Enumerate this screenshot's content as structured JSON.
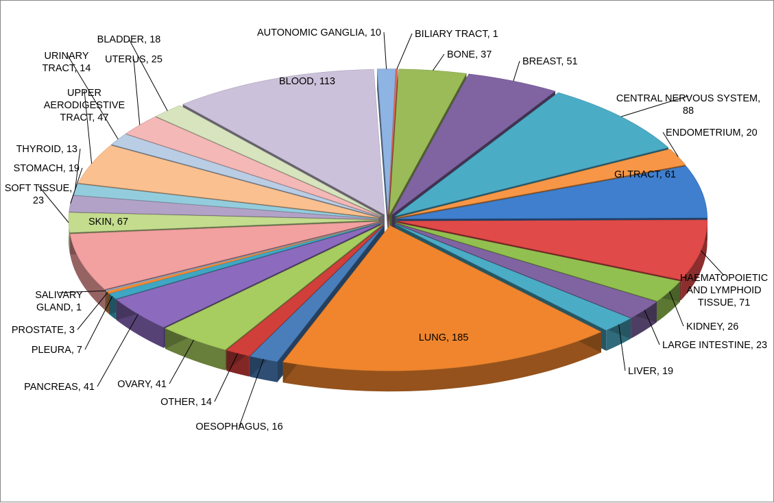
{
  "chart_data": {
    "type": "pie",
    "style": "3d-exploded",
    "slices": [
      {
        "label": "AUTONOMIC GANGLIA",
        "value": 10,
        "display": "AUTONOMIC GANGLIA, 10",
        "color": "#8EB4E3"
      },
      {
        "label": "BILIARY TRACT",
        "value": 1,
        "display": "BILIARY TRACT, 1",
        "color": "#E46C5A"
      },
      {
        "label": "BONE",
        "value": 37,
        "display": "BONE, 37",
        "color": "#9BBB59"
      },
      {
        "label": "BREAST",
        "value": 51,
        "display": "BREAST, 51",
        "color": "#8064A2"
      },
      {
        "label": "CENTRAL NERVOUS SYSTEM",
        "value": 88,
        "display": "CENTRAL NERVOUS SYSTEM, 88",
        "color": "#4BACC6"
      },
      {
        "label": "ENDOMETRIUM",
        "value": 20,
        "display": "ENDOMETRIUM, 20",
        "color": "#F79646"
      },
      {
        "label": "GI TRACT",
        "value": 61,
        "display": "GI TRACT, 61",
        "color": "#3F7FCE"
      },
      {
        "label": "HAEMATOPOIETIC AND LYMPHOID TISSUE",
        "value": 71,
        "display": "HAEMATOPOIETIC AND LYMPHOID TISSUE, 71",
        "color": "#E04A48"
      },
      {
        "label": "KIDNEY",
        "value": 26,
        "display": "KIDNEY, 26",
        "color": "#92C050"
      },
      {
        "label": "LARGE INTESTINE",
        "value": 23,
        "display": "LARGE INTESTINE, 23",
        "color": "#8064A2"
      },
      {
        "label": "LIVER",
        "value": 19,
        "display": "LIVER, 19",
        "color": "#4BACC6"
      },
      {
        "label": "LUNG",
        "value": 185,
        "display": "LUNG, 185",
        "color": "#F0852D"
      },
      {
        "label": "OESOPHAGUS",
        "value": 16,
        "display": "OESOPHAGUS, 16",
        "color": "#4A7EBB"
      },
      {
        "label": "OTHER",
        "value": 14,
        "display": "OTHER, 14",
        "color": "#D13F3B"
      },
      {
        "label": "OVARY",
        "value": 41,
        "display": "OVARY, 41",
        "color": "#A7CC5F"
      },
      {
        "label": "PANCREAS",
        "value": 41,
        "display": "PANCREAS, 41",
        "color": "#8C6BBE"
      },
      {
        "label": "PLEURA",
        "value": 7,
        "display": "PLEURA, 7",
        "color": "#3FA6C3"
      },
      {
        "label": "PROSTATE",
        "value": 3,
        "display": "PROSTATE, 3",
        "color": "#F08A38"
      },
      {
        "label": "SALIVARY GLAND",
        "value": 1,
        "display": "SALIVARY GLAND, 1",
        "color": "#95B3D7"
      },
      {
        "label": "SKIN",
        "value": 67,
        "display": "SKIN, 67",
        "color": "#F2A0A0"
      },
      {
        "label": "SOFT TISSUE",
        "value": 23,
        "display": "SOFT TISSUE, 23",
        "color": "#C3DC8E"
      },
      {
        "label": "STOMACH",
        "value": 19,
        "display": "STOMACH, 19",
        "color": "#B3A2C7"
      },
      {
        "label": "THYROID",
        "value": 13,
        "display": "THYROID, 13",
        "color": "#93CDDD"
      },
      {
        "label": "UPPER AERODIGESTIVE TRACT",
        "value": 47,
        "display": "UPPER AERODIGESTIVE TRACT, 47",
        "color": "#FAC090"
      },
      {
        "label": "URINARY TRACT",
        "value": 14,
        "display": "URINARY TRACT, 14",
        "color": "#B9CDE5"
      },
      {
        "label": "UTERUS",
        "value": 25,
        "display": "UTERUS, 25",
        "color": "#F4B8B7"
      },
      {
        "label": "BLADDER",
        "value": 18,
        "display": "BLADDER, 18",
        "color": "#D7E4BD"
      },
      {
        "label": "BLOOD",
        "value": 113,
        "display": "BLOOD, 113",
        "color": "#CCC1DA"
      }
    ]
  }
}
